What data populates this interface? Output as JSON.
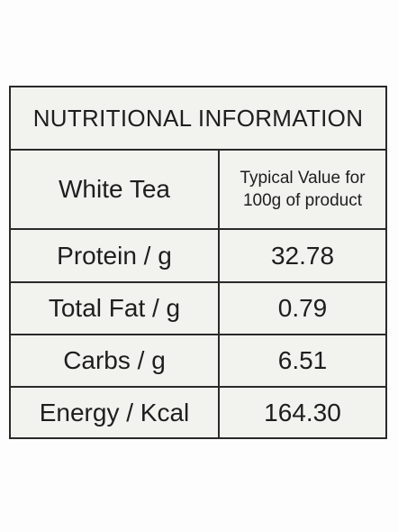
{
  "table": {
    "title": "NUTRITIONAL INFORMATION",
    "header": {
      "product": "White Tea",
      "value_lines": [
        "Typical Value for",
        "100g of product"
      ]
    },
    "rows": [
      [
        "Protein / g",
        "32.78"
      ],
      [
        "Total Fat / g",
        "0.79"
      ],
      [
        "Carbs / g",
        "6.51"
      ],
      [
        "Energy / Kcal",
        "164.30"
      ]
    ]
  }
}
